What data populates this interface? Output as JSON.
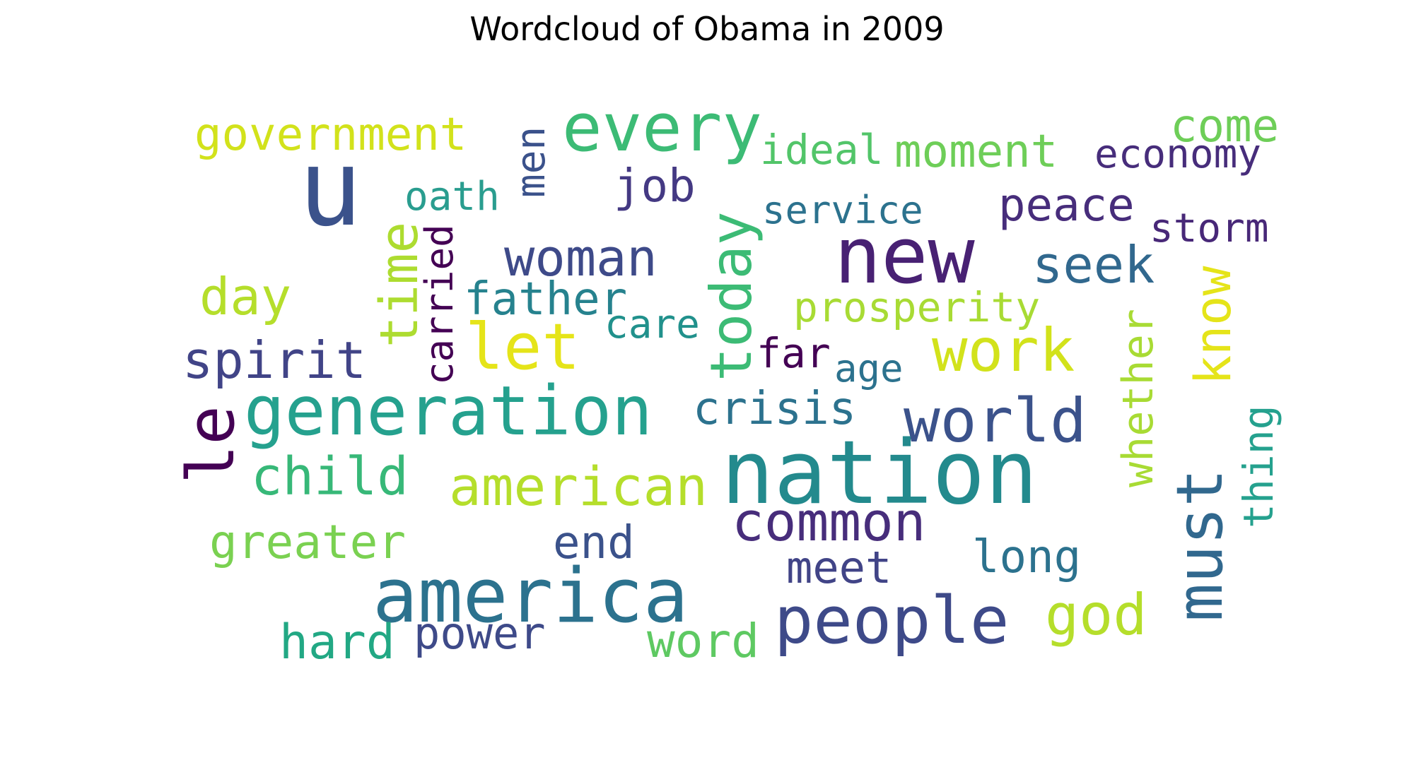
{
  "chart_data": {
    "type": "wordcloud",
    "title": "Wordcloud of Obama in 2009",
    "words": [
      {
        "text": "u",
        "color": "#3b528b"
      },
      {
        "text": "every",
        "color": "#3cbb75"
      },
      {
        "text": "government",
        "color": "#d2e21b"
      },
      {
        "text": "men",
        "color": "#3b528b"
      },
      {
        "text": "ideal",
        "color": "#52c569"
      },
      {
        "text": "moment",
        "color": "#6ece58"
      },
      {
        "text": "come",
        "color": "#6ece58"
      },
      {
        "text": "economy",
        "color": "#472d7b"
      },
      {
        "text": "oath",
        "color": "#2a9d8f"
      },
      {
        "text": "job",
        "color": "#443983"
      },
      {
        "text": "service",
        "color": "#2c728e"
      },
      {
        "text": "peace",
        "color": "#472d7b"
      },
      {
        "text": "storm",
        "color": "#482878"
      },
      {
        "text": "new",
        "color": "#482173"
      },
      {
        "text": "woman",
        "color": "#3e4a89"
      },
      {
        "text": "seek",
        "color": "#31688e"
      },
      {
        "text": "day",
        "color": "#b5de2b"
      },
      {
        "text": "time",
        "color": "#addc30"
      },
      {
        "text": "carried",
        "color": "#440154"
      },
      {
        "text": "father",
        "color": "#26828e"
      },
      {
        "text": "today",
        "color": "#3cbb75"
      },
      {
        "text": "prosperity",
        "color": "#a8db34"
      },
      {
        "text": "know",
        "color": "#e5e419"
      },
      {
        "text": "care",
        "color": "#21918c"
      },
      {
        "text": "spirit",
        "color": "#414487"
      },
      {
        "text": "let",
        "color": "#e5e419"
      },
      {
        "text": "far",
        "color": "#440154"
      },
      {
        "text": "age",
        "color": "#2c728e"
      },
      {
        "text": "work",
        "color": "#d2e21b"
      },
      {
        "text": "whether",
        "color": "#a8db34"
      },
      {
        "text": "le",
        "color": "#440154"
      },
      {
        "text": "generation",
        "color": "#25a18e"
      },
      {
        "text": "crisis",
        "color": "#2c728e"
      },
      {
        "text": "world",
        "color": "#3b528b"
      },
      {
        "text": "thing",
        "color": "#25a18e"
      },
      {
        "text": "child",
        "color": "#37b878"
      },
      {
        "text": "nation",
        "color": "#238a8d"
      },
      {
        "text": "american",
        "color": "#b5de2b"
      },
      {
        "text": "must",
        "color": "#31688e"
      },
      {
        "text": "common",
        "color": "#472d7b"
      },
      {
        "text": "greater",
        "color": "#7ad151"
      },
      {
        "text": "end",
        "color": "#3b528b"
      },
      {
        "text": "long",
        "color": "#2c728e"
      },
      {
        "text": "meet",
        "color": "#414487"
      },
      {
        "text": "america",
        "color": "#2c728e"
      },
      {
        "text": "people",
        "color": "#3e4a89"
      },
      {
        "text": "god",
        "color": "#b5de2b"
      },
      {
        "text": "hard",
        "color": "#22a884"
      },
      {
        "text": "power",
        "color": "#3e4a89"
      },
      {
        "text": "word",
        "color": "#5ec962"
      }
    ]
  }
}
